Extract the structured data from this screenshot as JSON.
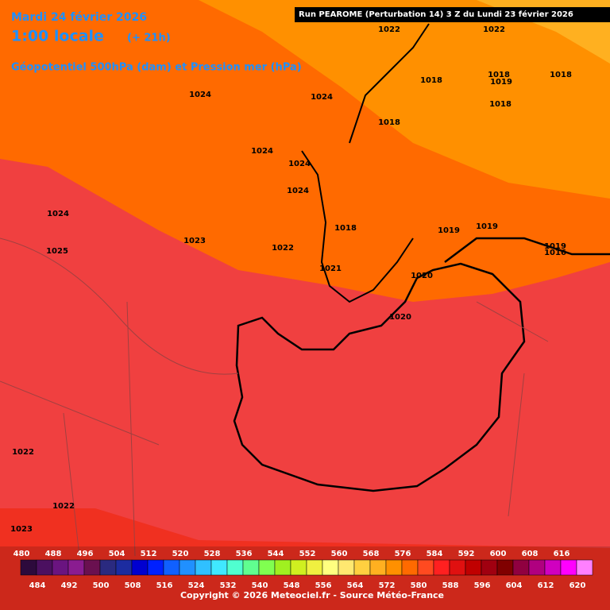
{
  "header": {
    "date": "Mardi 24 février 2026",
    "time": "1:00 locale",
    "lead": "(+ 21h)",
    "field": "Géopotentiel 500hPa (dam) et Pression mer (hPa)",
    "run": "Run PEAROME (Perturbation 14) 3 Z du Lundi 23 février 2026"
  },
  "isobar_labels": [
    1022,
    1022,
    1018,
    1018,
    1019,
    1018,
    1024,
    1024,
    1018,
    1018,
    1024,
    1024,
    1024,
    1024,
    1018,
    1019,
    1019,
    1023,
    1022,
    1025,
    1019,
    1016,
    1021,
    1020,
    1020,
    1022,
    1022,
    1023
  ],
  "colorbar": {
    "labels": [
      480,
      484,
      488,
      492,
      496,
      500,
      504,
      508,
      512,
      516,
      520,
      524,
      528,
      532,
      536,
      540,
      544,
      548,
      552,
      556,
      560,
      564,
      568,
      572,
      576,
      580,
      584,
      588,
      592,
      596,
      600,
      604,
      608,
      612,
      616,
      620
    ],
    "colors": [
      "#2d0a3c",
      "#4b1060",
      "#6a1480",
      "#8a1c90",
      "#6a1050",
      "#2a2a80",
      "#1c2ca0",
      "#0000d0",
      "#0020ff",
      "#1060ff",
      "#2090ff",
      "#30c0ff",
      "#40e8ff",
      "#50ffd0",
      "#60ff90",
      "#80ff50",
      "#a0f020",
      "#d0f020",
      "#f0f040",
      "#ffff80",
      "#ffe870",
      "#ffd040",
      "#ffb020",
      "#ff9000",
      "#ff6a00",
      "#ff4a20",
      "#ff2020",
      "#e01010",
      "#c00000",
      "#a00010",
      "#800000",
      "#900040",
      "#b00080",
      "#d000c0",
      "#ff00ff",
      "#ff80ff"
    ]
  },
  "copyright": "Copyright © 2026 Meteociel.fr - Source Météo-France"
}
